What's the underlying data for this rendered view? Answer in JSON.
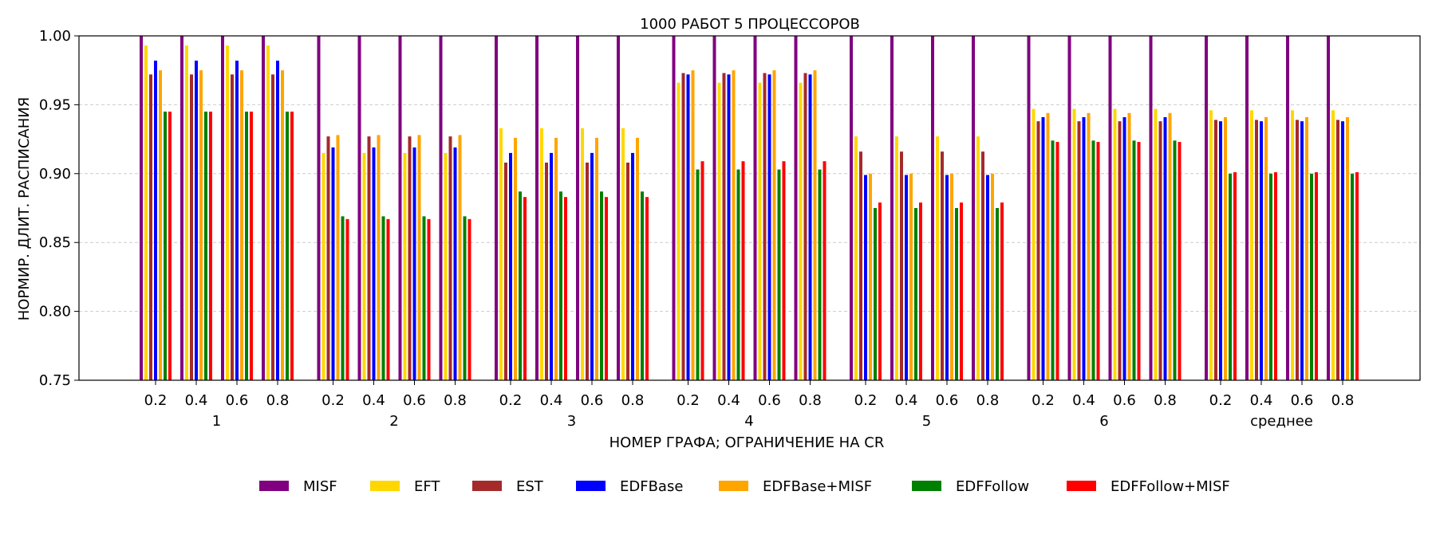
{
  "chart_data": {
    "type": "bar",
    "title": "1000 РАБОТ 5 ПРОЦЕССОРОВ",
    "xlabel": "НОМЕР ГРАФА; ОГРАНИЧЕНИЕ НА CR",
    "ylabel": "НОРМИР. ДЛИТ. РАСПИСАНИЯ",
    "ylim": [
      0.75,
      1.0
    ],
    "yticks": [
      "0.75",
      "0.80",
      "0.85",
      "0.90",
      "0.95",
      "1.00"
    ],
    "grid": "horizontal-dashed",
    "legend_position": "bottom-center",
    "groups": [
      "1",
      "2",
      "3",
      "4",
      "5",
      "6",
      "среднее"
    ],
    "subcategories": [
      "0.2",
      "0.4",
      "0.6",
      "0.8"
    ],
    "series": [
      {
        "name": "MISF",
        "color": "#800080",
        "values": [
          1.0,
          1.0,
          1.0,
          1.0,
          1.0,
          1.0,
          1.0,
          1.0,
          1.0,
          1.0,
          1.0,
          1.0,
          1.0,
          1.0,
          1.0,
          1.0,
          1.0,
          1.0,
          1.0,
          1.0,
          1.0,
          1.0,
          1.0,
          1.0,
          1.0,
          1.0,
          1.0,
          1.0
        ]
      },
      {
        "name": "EFT",
        "color": "#ffd700",
        "values": [
          0.993,
          0.993,
          0.993,
          0.993,
          0.915,
          0.915,
          0.915,
          0.915,
          0.933,
          0.933,
          0.933,
          0.933,
          0.966,
          0.966,
          0.966,
          0.966,
          0.927,
          0.927,
          0.927,
          0.927,
          0.947,
          0.947,
          0.947,
          0.947,
          0.946,
          0.946,
          0.946,
          0.946
        ]
      },
      {
        "name": "EST",
        "color": "#a52a2a",
        "values": [
          0.972,
          0.972,
          0.972,
          0.972,
          0.927,
          0.927,
          0.927,
          0.927,
          0.908,
          0.908,
          0.908,
          0.908,
          0.973,
          0.973,
          0.973,
          0.973,
          0.916,
          0.916,
          0.916,
          0.916,
          0.938,
          0.938,
          0.938,
          0.938,
          0.939,
          0.939,
          0.939,
          0.939
        ]
      },
      {
        "name": "EDFBase",
        "color": "#0000ff",
        "values": [
          0.982,
          0.982,
          0.982,
          0.982,
          0.919,
          0.919,
          0.919,
          0.919,
          0.915,
          0.915,
          0.915,
          0.915,
          0.972,
          0.972,
          0.972,
          0.972,
          0.899,
          0.899,
          0.899,
          0.899,
          0.941,
          0.941,
          0.941,
          0.941,
          0.938,
          0.938,
          0.938,
          0.938
        ]
      },
      {
        "name": "EDFBase+MISF",
        "color": "#ffa500",
        "values": [
          0.975,
          0.975,
          0.975,
          0.975,
          0.928,
          0.928,
          0.928,
          0.928,
          0.926,
          0.926,
          0.926,
          0.926,
          0.975,
          0.975,
          0.975,
          0.975,
          0.9,
          0.9,
          0.9,
          0.9,
          0.944,
          0.944,
          0.944,
          0.944,
          0.941,
          0.941,
          0.941,
          0.941
        ]
      },
      {
        "name": "EDFFollow",
        "color": "#008000",
        "values": [
          0.945,
          0.945,
          0.945,
          0.945,
          0.869,
          0.869,
          0.869,
          0.869,
          0.887,
          0.887,
          0.887,
          0.887,
          0.903,
          0.903,
          0.903,
          0.903,
          0.875,
          0.875,
          0.875,
          0.875,
          0.924,
          0.924,
          0.924,
          0.924,
          0.9,
          0.9,
          0.9,
          0.9
        ]
      },
      {
        "name": "EDFFollow+MISF",
        "color": "#ff0000",
        "values": [
          0.945,
          0.945,
          0.945,
          0.945,
          0.867,
          0.867,
          0.867,
          0.867,
          0.883,
          0.883,
          0.883,
          0.883,
          0.909,
          0.909,
          0.909,
          0.909,
          0.879,
          0.879,
          0.879,
          0.879,
          0.923,
          0.923,
          0.923,
          0.923,
          0.901,
          0.901,
          0.901,
          0.901
        ]
      }
    ]
  }
}
